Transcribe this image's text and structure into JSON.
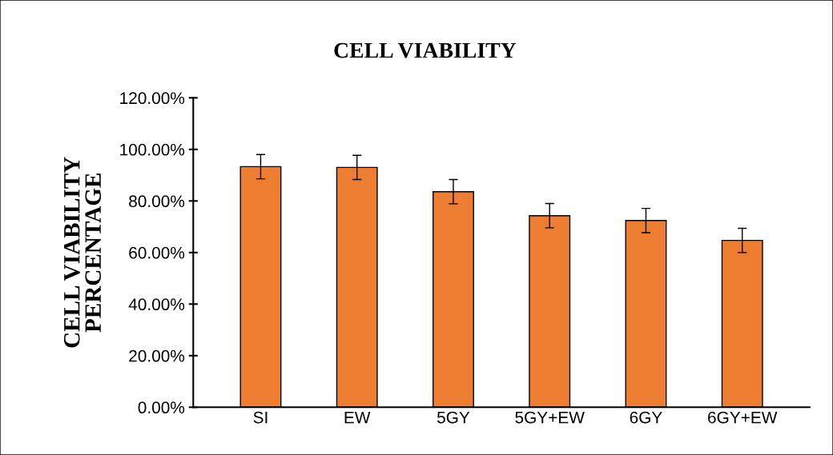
{
  "chart_data": {
    "type": "bar",
    "title": "CELL VIABILITY",
    "ylabel": "CELL VIABILITY\nPERCENTAGE",
    "categories": [
      "SI",
      "EW",
      "5GY",
      "5GY+EW",
      "6GY",
      "6GY+EW"
    ],
    "values": [
      93.3,
      93.0,
      83.6,
      74.3,
      72.4,
      64.7
    ],
    "errors": [
      4.7,
      4.7,
      4.7,
      4.7,
      4.7,
      4.7
    ],
    "color": "#ed7d31",
    "ylim": [
      0,
      120
    ],
    "yticks": [
      {
        "value": 0,
        "label": "0.00%"
      },
      {
        "value": 20,
        "label": "20.00%"
      },
      {
        "value": 40,
        "label": "40.00%"
      },
      {
        "value": 60,
        "label": "60.00%"
      },
      {
        "value": 80,
        "label": "80.00%"
      },
      {
        "value": 100,
        "label": "100.00%"
      },
      {
        "value": 120,
        "label": "120.00%"
      }
    ],
    "grid": false,
    "legend": false
  }
}
